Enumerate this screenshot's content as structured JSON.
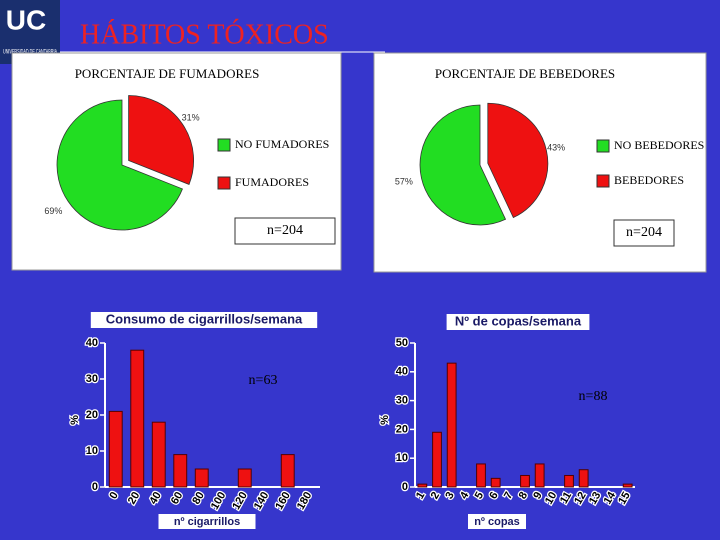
{
  "header": {
    "logo": "UC",
    "institution": "UNIVERSIDAD DE CANTABRIA",
    "title": "HÁBITOS TÓXICOS"
  },
  "chart_data": [
    {
      "type": "pie",
      "title": "PORCENTAJE DE FUMADORES",
      "categories": [
        "NO FUMADORES",
        "FUMADORES"
      ],
      "values": [
        69,
        31
      ],
      "value_labels": [
        "69%",
        "31%"
      ],
      "colors": [
        "#22dd22",
        "#ee1111"
      ],
      "annotation": "n=204"
    },
    {
      "type": "pie",
      "title": "PORCENTAJE DE BEBEDORES",
      "categories": [
        "NO BEBEDORES",
        "BEBEDORES"
      ],
      "values": [
        57,
        43
      ],
      "value_labels": [
        "57%",
        "43%"
      ],
      "colors": [
        "#22dd22",
        "#ee1111"
      ],
      "annotation": "n=204"
    },
    {
      "type": "bar",
      "title": "Consumo de cigarrillos/semana",
      "categories": [
        "0",
        "20",
        "40",
        "60",
        "80",
        "100",
        "120",
        "140",
        "160",
        "180"
      ],
      "values": [
        21,
        38,
        18,
        9,
        5,
        0,
        5,
        0,
        9,
        0
      ],
      "color": "#ee1111",
      "ylim": [
        0,
        40
      ],
      "yticks": [
        0,
        10,
        20,
        30,
        40
      ],
      "y_label": "%",
      "x_label": "nº cigarrillos",
      "annotation": "n=63"
    },
    {
      "type": "bar",
      "title": "Nº de copas/semana",
      "categories": [
        "1",
        "2",
        "3",
        "4",
        "5",
        "6",
        "7",
        "8",
        "9",
        "10",
        "11",
        "12",
        "13",
        "14",
        "15"
      ],
      "values": [
        1,
        19,
        43,
        0,
        8,
        3,
        0,
        4,
        8,
        0,
        4,
        6,
        0,
        0,
        1
      ],
      "color": "#ee1111",
      "ylim": [
        0,
        50
      ],
      "yticks": [
        0,
        10,
        20,
        30,
        40,
        50
      ],
      "y_label": "%",
      "x_label": "nº copas",
      "annotation": "n=88"
    }
  ]
}
